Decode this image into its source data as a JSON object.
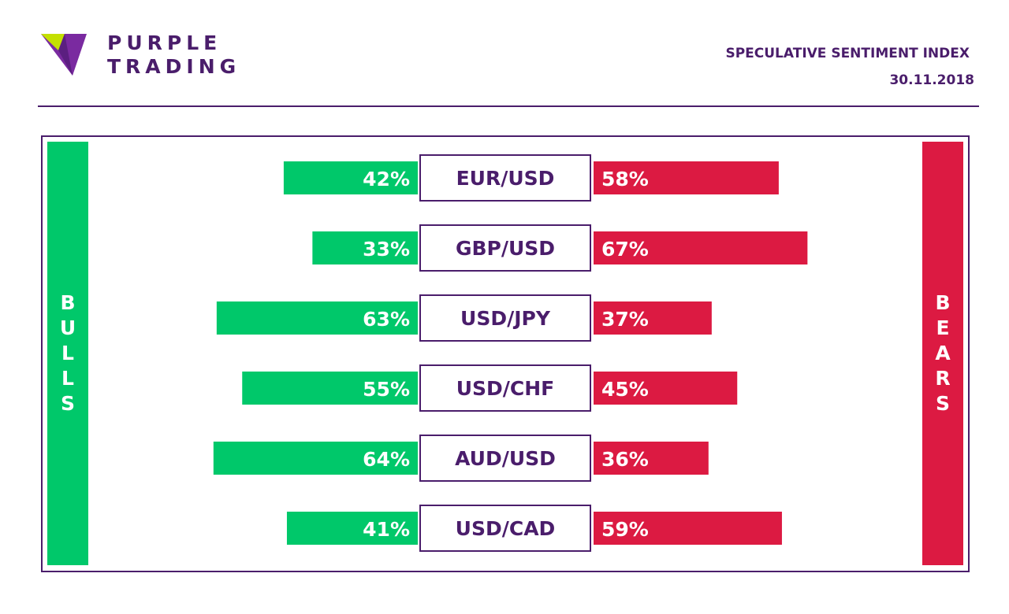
{
  "brand": {
    "line1": "PURPLE",
    "line2": "TRADING",
    "colors": {
      "purple": "#4a1d6b",
      "logo_purple": "#7a2aa0",
      "logo_lime": "#c4e000"
    }
  },
  "header": {
    "title": "SPECULATIVE SENTIMENT INDEX",
    "date": "30.11.2018"
  },
  "side_labels": {
    "left": "BULLS",
    "right": "BEARS"
  },
  "colors": {
    "bulls": "#00c86a",
    "bears": "#dc1a42",
    "frame": "#4a1d6b"
  },
  "chart_data": {
    "type": "bar",
    "categories": [
      "EUR/USD",
      "GBP/USD",
      "USD/JPY",
      "USD/CHF",
      "AUD/USD",
      "USD/CAD"
    ],
    "series": [
      {
        "name": "BULLS",
        "values": [
          42,
          33,
          63,
          55,
          64,
          41
        ],
        "labels": [
          "42%",
          "33%",
          "63%",
          "55%",
          "64%",
          "41%"
        ]
      },
      {
        "name": "BEARS",
        "values": [
          58,
          67,
          37,
          45,
          36,
          59
        ],
        "labels": [
          "58%",
          "67%",
          "37%",
          "45%",
          "36%",
          "59%"
        ]
      }
    ]
  }
}
